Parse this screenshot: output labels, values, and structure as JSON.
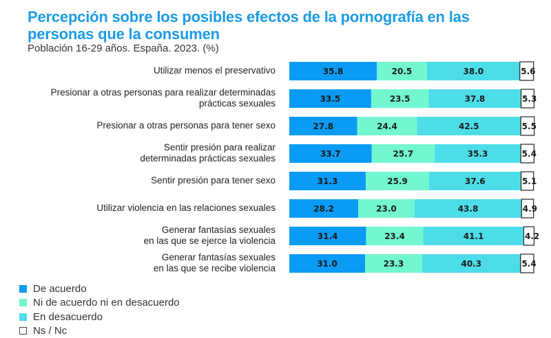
{
  "chart_data": {
    "type": "bar",
    "orientation": "horizontal",
    "stacked": true,
    "title": "Percepción sobre los posibles efectos de la pornografía en las personas que la consumen",
    "subtitle": "Población 16-29 años. España. 2023. (%)",
    "xlim": [
      0,
      100
    ],
    "legend_position": "bottom-left",
    "categories": [
      "Utilizar menos el preservativo",
      "Presionar a otras personas para realizar determinadas\nprácticas sexuales",
      "Presionar a otras personas para tener sexo",
      "Sentir presión para realizar\ndeterminadas prácticas sexuales",
      "Sentir presión para tener sexo",
      "Utilizar violencia en las relaciones sexuales",
      "Generar fantasías sexuales\nen las que se ejerce la violencia",
      "Generar fantasías sexuales\nen las que se recibe violencia"
    ],
    "series": [
      {
        "name": "De acuerdo",
        "color": "#0a9bf5",
        "values": [
          35.8,
          33.5,
          27.8,
          33.7,
          31.3,
          28.2,
          31.4,
          31.0
        ]
      },
      {
        "name": "Ni de acuerdo ni en desacuerdo",
        "color": "#72f7d0",
        "values": [
          20.5,
          23.5,
          24.4,
          25.7,
          25.9,
          23.0,
          23.4,
          23.3
        ]
      },
      {
        "name": "En desacuerdo",
        "color": "#4ddde8",
        "values": [
          38.0,
          37.8,
          42.5,
          35.3,
          37.6,
          43.8,
          41.1,
          40.3
        ]
      },
      {
        "name": "Ns / Nc",
        "color": "#ffffff",
        "values": [
          5.6,
          5.3,
          5.5,
          5.4,
          5.1,
          4.9,
          4.2,
          5.4
        ]
      }
    ]
  }
}
